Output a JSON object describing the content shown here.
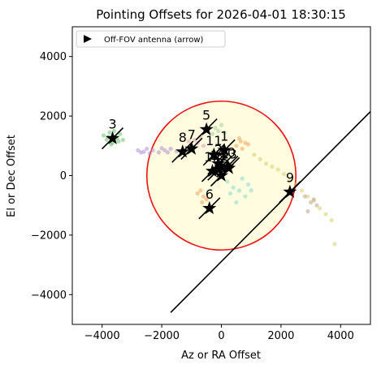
{
  "chart_data": {
    "type": "scatter",
    "title": "Pointing Offsets for 2026-04-01 18:30:15",
    "xlabel": "Az or RA Offset",
    "ylabel": "El or Dec Offset",
    "xlim": [
      -5000,
      5000
    ],
    "ylim": [
      -5000,
      5000
    ],
    "xticks": [
      -4000,
      -2000,
      0,
      2000,
      4000
    ],
    "yticks": [
      -4000,
      -2000,
      0,
      2000,
      4000
    ],
    "xtick_labels": [
      "−4000",
      "−2000",
      "0",
      "2000",
      "4000"
    ],
    "ytick_labels": [
      "−4000",
      "−2000",
      "0",
      "2000",
      "4000"
    ],
    "grid": false,
    "legend": {
      "placement": "top-left",
      "entries": [
        "Off-FOV antenna (arrow)"
      ]
    },
    "fov_circle": {
      "center": [
        0,
        0
      ],
      "radius": 2500,
      "edge_color": "#ee1111",
      "fill_color": "#fffbd9"
    },
    "off_fov_line": {
      "from": [
        -1700,
        -4600
      ],
      "to": [
        5000,
        2150
      ]
    },
    "antennas": [
      {
        "label": "1",
        "x": 100,
        "y": 850
      },
      {
        "label": "2",
        "x": -100,
        "y": 400
      },
      {
        "label": "3",
        "x": -3650,
        "y": 1250
      },
      {
        "label": "4",
        "x": 0,
        "y": 300
      },
      {
        "label": "5",
        "x": -500,
        "y": 1550
      },
      {
        "label": "6",
        "x": -400,
        "y": -1100
      },
      {
        "label": "7",
        "x": -1000,
        "y": 900
      },
      {
        "label": "8",
        "x": -1300,
        "y": 800
      },
      {
        "label": "9",
        "x": 2300,
        "y": -550
      },
      {
        "label": "10",
        "x": 200,
        "y": 300
      },
      {
        "label": "11",
        "x": -250,
        "y": 700
      },
      {
        "label": "12",
        "x": -100,
        "y": 200
      },
      {
        "label": "13",
        "x": 250,
        "y": 250
      },
      {
        "label": "14",
        "x": -300,
        "y": 150
      },
      {
        "label": "15",
        "x": 0,
        "y": 0
      }
    ],
    "trails": [
      {
        "color": "#6cc46c",
        "points": [
          [
            -3950,
            1350
          ],
          [
            -3850,
            1200
          ],
          [
            -3750,
            1450
          ],
          [
            -3650,
            1100
          ],
          [
            -3550,
            1300
          ],
          [
            -3450,
            1150
          ],
          [
            -3400,
            1400
          ],
          [
            -3700,
            1050
          ],
          [
            -3600,
            1500
          ],
          [
            -3500,
            1250
          ],
          [
            -3300,
            1200
          ],
          [
            -3800,
            1300
          ]
        ]
      },
      {
        "color": "#b08fd6",
        "points": [
          [
            -2800,
            850
          ],
          [
            -2600,
            800
          ],
          [
            -2500,
            900
          ],
          [
            -2300,
            850
          ],
          [
            -2100,
            780
          ],
          [
            -1900,
            850
          ],
          [
            -1700,
            900
          ],
          [
            -1500,
            820
          ],
          [
            -2400,
            750
          ],
          [
            -2000,
            920
          ],
          [
            -2700,
            780
          ],
          [
            -1800,
            780
          ]
        ]
      },
      {
        "color": "#f2a25c",
        "points": [
          [
            500,
            1000
          ],
          [
            650,
            1150
          ],
          [
            800,
            1100
          ],
          [
            700,
            900
          ],
          [
            900,
            1050
          ],
          [
            600,
            1250
          ],
          [
            -700,
            -500
          ],
          [
            -600,
            -700
          ],
          [
            -800,
            -600
          ],
          [
            -500,
            -800
          ],
          [
            -650,
            -900
          ]
        ]
      },
      {
        "color": "#d6cf6a",
        "points": [
          [
            1100,
            700
          ],
          [
            1300,
            550
          ],
          [
            1500,
            400
          ],
          [
            1700,
            300
          ],
          [
            1900,
            200
          ],
          [
            2100,
            50
          ],
          [
            2300,
            -150
          ],
          [
            2500,
            -300
          ],
          [
            2700,
            -500
          ],
          [
            2900,
            -700
          ],
          [
            3100,
            -850
          ],
          [
            3300,
            -1100
          ],
          [
            3500,
            -1300
          ],
          [
            3700,
            -1500
          ],
          [
            3800,
            -2300
          ]
        ]
      },
      {
        "color": "#86d8d0",
        "points": [
          [
            200,
            -200
          ],
          [
            400,
            -400
          ],
          [
            600,
            -500
          ],
          [
            800,
            -700
          ],
          [
            500,
            -900
          ],
          [
            300,
            -600
          ],
          [
            900,
            -300
          ],
          [
            700,
            -100
          ],
          [
            1000,
            -500
          ]
        ]
      },
      {
        "color": "#e89ab8",
        "points": [
          [
            -1000,
            1000
          ],
          [
            -900,
            1200
          ],
          [
            -800,
            1100
          ],
          [
            -700,
            1300
          ],
          [
            -600,
            1000
          ],
          [
            -1100,
            1150
          ]
        ]
      },
      {
        "color": "#9fd29b",
        "points": [
          [
            -300,
            1400
          ],
          [
            -200,
            1600
          ],
          [
            -100,
            1500
          ],
          [
            0,
            1700
          ],
          [
            100,
            1450
          ]
        ]
      },
      {
        "color": "#bfa38a",
        "points": [
          [
            2800,
            -700
          ],
          [
            3000,
            -900
          ],
          [
            3200,
            -1000
          ],
          [
            2900,
            -1200
          ],
          [
            3100,
            -800
          ]
        ]
      }
    ]
  }
}
